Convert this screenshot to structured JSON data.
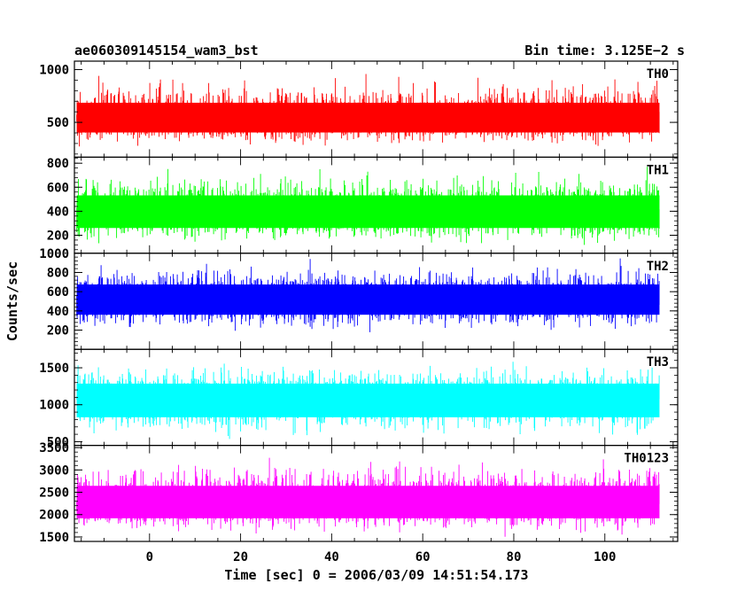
{
  "header": {
    "left_title": "ae060309145154_wam3_bst",
    "right_title": "Bin time: 3.125E−2 s"
  },
  "chart_data": {
    "type": "line",
    "title": "ae060309145154_wam3_bst",
    "subtitle": "Bin time: 3.125E−2 s",
    "xlabel": "Time [sec] 0 = 2006/03/09 14:51:54.173",
    "ylabel": "Counts/sec",
    "xlim": [
      -16.5,
      116
    ],
    "data_xrange": [
      -16,
      112
    ],
    "bin_time_s": 0.03125,
    "x_ticks": [
      0,
      20,
      40,
      60,
      80,
      100
    ],
    "panels": [
      {
        "name": "TH0",
        "color": "#ff0000",
        "ylim": [
          170,
          1080
        ],
        "y_ticks": [
          500,
          1000
        ],
        "mean": 530,
        "low_envelope": 250,
        "high_envelope": 1050
      },
      {
        "name": "TH1",
        "color": "#00ff00",
        "ylim": [
          50,
          850
        ],
        "y_ticks": [
          200,
          400,
          600,
          800
        ],
        "mean": 400,
        "low_envelope": 90,
        "high_envelope": 840
      },
      {
        "name": "TH2",
        "color": "#0000ff",
        "ylim": [
          0,
          1000
        ],
        "y_ticks": [
          200,
          400,
          600,
          800,
          1000
        ],
        "mean": 540,
        "low_envelope": 140,
        "high_envelope": 990
      },
      {
        "name": "TH3",
        "color": "#00ffff",
        "ylim": [
          450,
          1750
        ],
        "y_ticks": [
          500,
          1000,
          1500
        ],
        "mean": 1100,
        "low_envelope": 500,
        "high_envelope": 1720
      },
      {
        "name": "TH0123",
        "color": "#ff00ff",
        "ylim": [
          1400,
          3550
        ],
        "y_ticks": [
          1500,
          2000,
          2500,
          3000,
          3500
        ],
        "mean": 2300,
        "low_envelope": 1450,
        "high_envelope": 3450
      }
    ]
  }
}
